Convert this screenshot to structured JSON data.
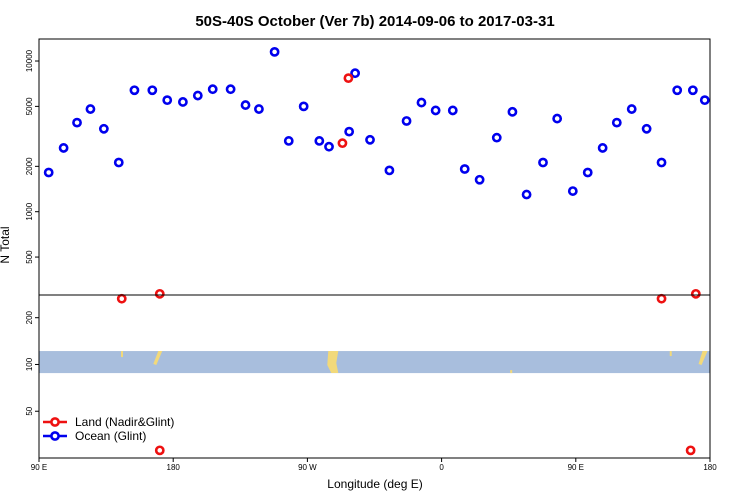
{
  "chart_data": {
    "type": "scatter",
    "title": "50S-40S October (Ver 7b)   2014-09-06 to 2017-03-31",
    "xlabel": "Longitude (deg E)",
    "ylabel": "N Total",
    "x_ticks": [
      {
        "value": 90,
        "label": "90 E"
      },
      {
        "value": 180,
        "label": "180"
      },
      {
        "value": 270,
        "label": "90 W"
      },
      {
        "value": 360,
        "label": "0"
      },
      {
        "value": 450,
        "label": "90 E"
      },
      {
        "value": 540,
        "label": "180"
      }
    ],
    "xlim": [
      90,
      540
    ],
    "y_scale": "log",
    "upper_panel": {
      "ylim": [
        280,
        14000
      ],
      "ticks": [
        500,
        1000,
        2000,
        5000,
        10000
      ]
    },
    "lower_panel": {
      "ylim": [
        25,
        280
      ],
      "ticks": [
        50,
        100,
        200
      ]
    },
    "land_band": {
      "y_range": [
        88,
        122
      ],
      "color": "#a8bedd",
      "land_color": "#f2d97a"
    },
    "colors": {
      "land": "#ee1111",
      "ocean": "#0000ee"
    },
    "legend": {
      "position": "bottom-left",
      "entries": [
        {
          "key": "land",
          "label": "Land (Nadir&Glint)"
        },
        {
          "key": "ocean",
          "label": "Ocean (Glint)"
        }
      ]
    },
    "series": [
      {
        "key": "ocean",
        "name": "Ocean (Glint)",
        "points": [
          [
            96.5,
            1820
          ],
          [
            106.5,
            2650
          ],
          [
            115.5,
            3900
          ],
          [
            124.5,
            4800
          ],
          [
            133.5,
            3550
          ],
          [
            143.5,
            2120
          ],
          [
            154,
            6400
          ],
          [
            166,
            6400
          ],
          [
            176,
            5500
          ],
          [
            186.5,
            5350
          ],
          [
            196.5,
            5900
          ],
          [
            206.5,
            6500
          ],
          [
            218.5,
            6500
          ],
          [
            228.5,
            5100
          ],
          [
            237.5,
            4800
          ],
          [
            248,
            11500
          ],
          [
            257.5,
            2950
          ],
          [
            267.5,
            5000
          ],
          [
            278,
            2950
          ],
          [
            284.5,
            2700
          ],
          [
            298,
            3400
          ],
          [
            302,
            8300
          ],
          [
            312,
            3000
          ],
          [
            325,
            1880
          ],
          [
            336.5,
            4000
          ],
          [
            346.5,
            5300
          ],
          [
            356,
            4700
          ],
          [
            367.5,
            4700
          ],
          [
            375.5,
            1920
          ],
          [
            385.5,
            1630
          ],
          [
            397,
            3100
          ],
          [
            407.5,
            4600
          ],
          [
            417,
            1300
          ],
          [
            428,
            2120
          ],
          [
            437.5,
            4150
          ],
          [
            448,
            1370
          ],
          [
            458,
            1820
          ],
          [
            468,
            2650
          ],
          [
            477.5,
            3900
          ],
          [
            487.5,
            4800
          ],
          [
            497.5,
            3550
          ],
          [
            507.5,
            2120
          ],
          [
            518,
            6400
          ],
          [
            528.5,
            6400
          ],
          [
            536.5,
            5500
          ]
        ]
      },
      {
        "key": "land",
        "name": "Land (Nadir&Glint)",
        "points": [
          [
            145.5,
            265
          ],
          [
            171,
            285
          ],
          [
            293.5,
            2850
          ],
          [
            297.5,
            7700
          ],
          [
            171,
            28
          ],
          [
            507.5,
            265
          ],
          [
            530.5,
            285
          ],
          [
            527,
            28
          ]
        ]
      }
    ]
  }
}
